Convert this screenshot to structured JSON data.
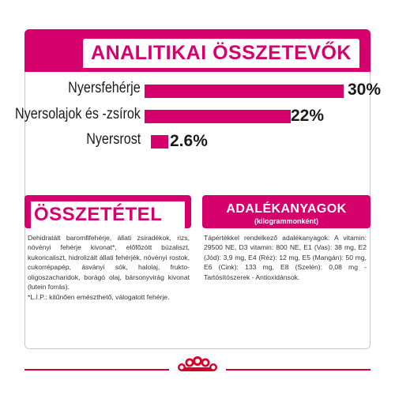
{
  "analytical": {
    "title": "ANALITIKAI ÖSSZETEVŐK",
    "rows": [
      {
        "label": "Nyersfehérje",
        "value_text": "30%",
        "value": 30
      },
      {
        "label": "Nyersolajok és -zsírok",
        "value_text": "22%",
        "value": 22
      },
      {
        "label": "Nyersrost",
        "value_text": "2.6%",
        "value": 2.6
      }
    ]
  },
  "composition": {
    "title": "ÖSSZETÉTEL",
    "text": "Dehidratált baromfifehérje, állati zsiradékok, rizs, növényi fehérje kivonat*, előfőzött búzaliszt, kukoricaliszt, hidrolizált állati fehérjék, növényi rostok, cukorrépapép, ásványi sók, halolaj, frukto-oligoszacharidok, borágó olaj, bársonyvirág kivonat (lutein forrás).",
    "footnote": "*L.I.P.: kitűnően emészthető, válogatott fehérje."
  },
  "additives": {
    "title": "ADALÉKANYAGOK",
    "subtitle": "(kilogrammonként)",
    "text": "Tápértékkel rendelkező adalékanyagok: A vitamin: 29500 NE, D3 vitamin: 800 NE, E1 (Vas): 38 mg, E2 (Jód): 3,9 mg, E4 (Réz): 12 mg, E5 (Mangán): 50 mg, E6 (Cink): 133 mg, E8 (Szelén): 0,08 mg - Tartósítószerek - Antioxidánsok."
  },
  "colors": {
    "accent": "#d6006d",
    "footer_red": "#d6002a"
  },
  "footer": {
    "logo_icon": "crown-logo-icon"
  }
}
